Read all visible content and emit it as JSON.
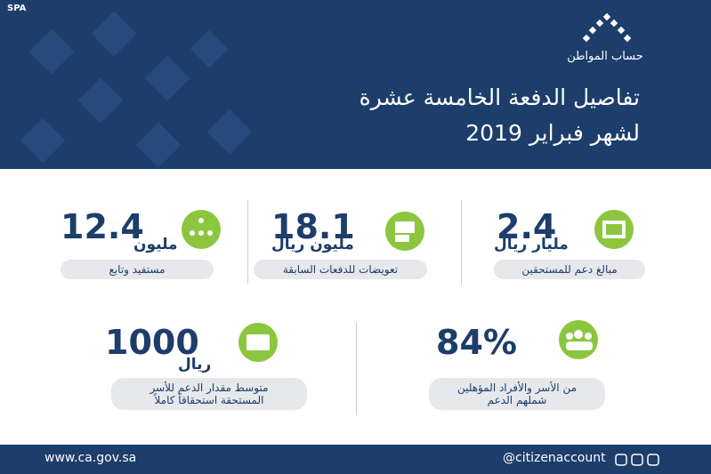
{
  "header": {
    "agency_mark": "SPA",
    "logo_text": "حساب المواطن",
    "title_lines": [
      "تفاصيل الدفعة الخامسة عشرة",
      "لشهر فبراير 2019"
    ]
  },
  "stats": [
    {
      "number": "12.4",
      "unit": "مليون",
      "label_lines": [
        "مستفيد وتابع"
      ]
    },
    {
      "number": "18.1",
      "unit": "مليون ريال",
      "label_lines": [
        "تعويضات للدفعات السابقة"
      ]
    },
    {
      "number": "2.4",
      "unit": "مليار ريال",
      "label_lines": [
        "مبالغ دعم للمستحقين"
      ]
    },
    {
      "number": "1000",
      "unit": "ريال",
      "label_lines": [
        "متوسط مقدار الدعم للأسر",
        "المستحقة استحقاقاً كاملاً"
      ]
    },
    {
      "number": "84%",
      "unit": null,
      "label_lines": [
        "من الأسر والأفراد المؤهلين",
        "شملهم الدعم"
      ]
    }
  ],
  "footer": {
    "website": "www.ca.gov.sa",
    "handle": "@citizenaccount"
  }
}
